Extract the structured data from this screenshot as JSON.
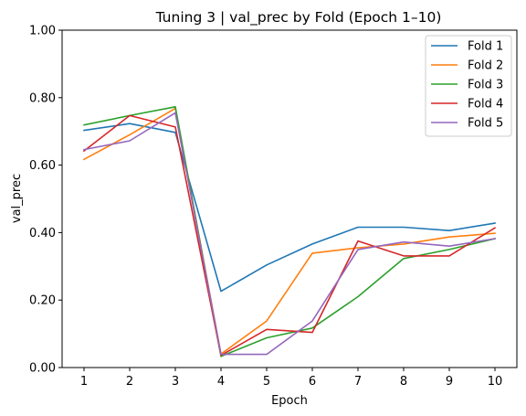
{
  "chart_data": {
    "type": "line",
    "title": "Tuning 3 | val_prec by Fold (Epoch 1–10)",
    "xlabel": "Epoch",
    "ylabel": "val_prec",
    "x": [
      1,
      2,
      3,
      4,
      5,
      6,
      7,
      8,
      9,
      10
    ],
    "xticks": [
      "1",
      "2",
      "3",
      "4",
      "5",
      "6",
      "7",
      "8",
      "9",
      "10"
    ],
    "ylim": [
      0.0,
      1.0
    ],
    "yticks": [
      "0.00",
      "0.20",
      "0.40",
      "0.60",
      "0.80",
      "1.00"
    ],
    "grid": false,
    "legend_position": "top-right",
    "series": [
      {
        "name": "Fold 1",
        "color": "#1f77b4",
        "values": [
          0.703,
          0.723,
          0.697,
          0.226,
          0.304,
          0.366,
          0.416,
          0.416,
          0.406,
          0.428
        ]
      },
      {
        "name": "Fold 2",
        "color": "#ff7f0e",
        "values": [
          0.617,
          0.69,
          0.768,
          0.04,
          0.138,
          0.339,
          0.355,
          0.366,
          0.387,
          0.398
        ]
      },
      {
        "name": "Fold 3",
        "color": "#2ca02c",
        "values": [
          0.719,
          0.747,
          0.773,
          0.033,
          0.088,
          0.117,
          0.21,
          0.323,
          0.35,
          0.382
        ]
      },
      {
        "name": "Fold 4",
        "color": "#d62728",
        "values": [
          0.642,
          0.747,
          0.713,
          0.036,
          0.113,
          0.104,
          0.375,
          0.331,
          0.331,
          0.414
        ]
      },
      {
        "name": "Fold 5",
        "color": "#9467bd",
        "values": [
          0.646,
          0.672,
          0.755,
          0.039,
          0.039,
          0.138,
          0.35,
          0.372,
          0.36,
          0.382
        ]
      }
    ]
  }
}
